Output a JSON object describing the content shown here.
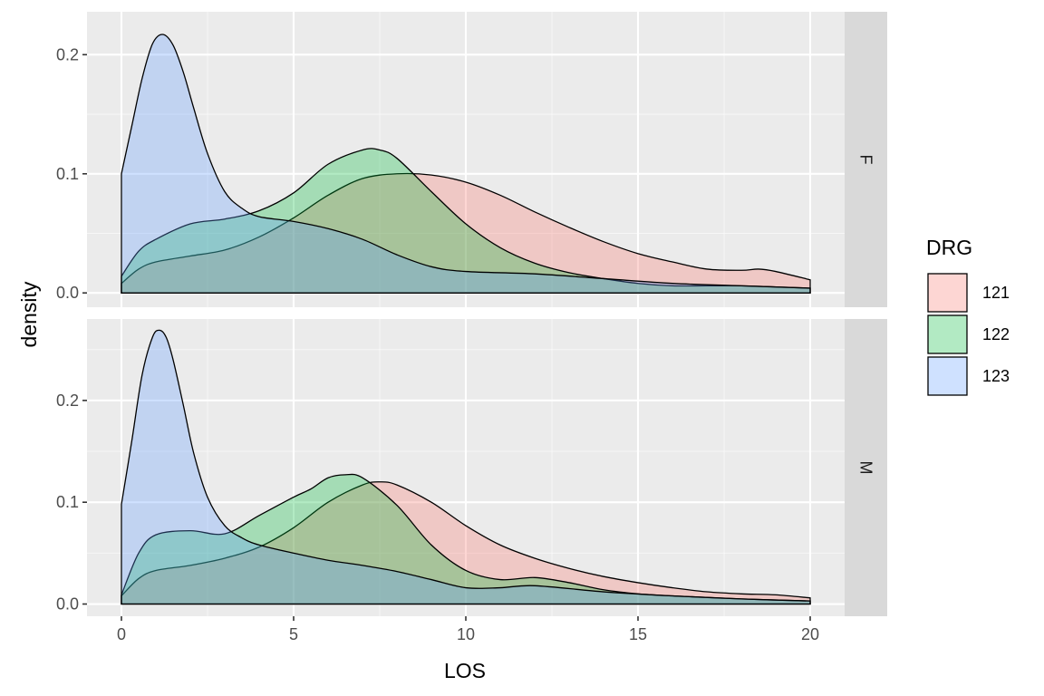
{
  "chart_data": {
    "type": "area",
    "subtype": "density",
    "xlabel": "LOS",
    "ylabel": "density",
    "xlim": [
      -1,
      21
    ],
    "x_ticks": [
      0,
      5,
      10,
      15,
      20
    ],
    "x_tick_labels": [
      "0",
      "5",
      "10",
      "15",
      "20"
    ],
    "y_ticks": [
      0.0,
      0.1,
      0.2
    ],
    "y_tick_labels": [
      "0.0",
      "0.1",
      "0.2"
    ],
    "legend": {
      "title": "DRG",
      "position": "right",
      "entries": [
        {
          "label": "121",
          "color": "#F8766D"
        },
        {
          "label": "122",
          "color": "#00BA38"
        },
        {
          "label": "123",
          "color": "#619CFF"
        }
      ]
    },
    "facets": [
      {
        "label": "F",
        "ylim": [
          -0.012,
          0.236
        ],
        "series": [
          {
            "name": "121",
            "color": "#F8766D",
            "x": [
              0,
              0.5,
              1,
              2,
              3,
              4,
              5,
              6,
              7,
              8,
              9,
              10,
              11,
              12,
              13,
              14,
              15,
              16,
              17,
              18,
              18.5,
              19,
              20
            ],
            "y": [
              0.008,
              0.02,
              0.026,
              0.031,
              0.036,
              0.047,
              0.063,
              0.082,
              0.096,
              0.1,
              0.099,
              0.093,
              0.082,
              0.068,
              0.055,
              0.043,
              0.033,
              0.026,
              0.02,
              0.019,
              0.02,
              0.018,
              0.011
            ]
          },
          {
            "name": "122",
            "color": "#00BA38",
            "x": [
              0,
              0.5,
              1,
              2,
              3,
              4,
              5,
              6,
              7,
              7.5,
              8,
              9,
              10,
              11,
              12,
              13,
              14,
              15,
              16,
              17,
              18,
              19,
              20
            ],
            "y": [
              0.014,
              0.035,
              0.045,
              0.058,
              0.062,
              0.069,
              0.084,
              0.108,
              0.12,
              0.12,
              0.113,
              0.085,
              0.058,
              0.038,
              0.025,
              0.017,
              0.012,
              0.008,
              0.006,
              0.006,
              0.006,
              0.005,
              0.004
            ]
          },
          {
            "name": "123",
            "color": "#619CFF",
            "x": [
              0,
              0.3,
              0.6,
              0.9,
              1.2,
              1.5,
              1.8,
              2.1,
              2.5,
              3,
              3.5,
              4,
              5,
              6,
              7,
              8,
              9,
              10,
              12,
              14,
              16,
              18,
              20
            ],
            "y": [
              0.1,
              0.14,
              0.18,
              0.209,
              0.217,
              0.208,
              0.185,
              0.155,
              0.117,
              0.085,
              0.071,
              0.064,
              0.06,
              0.054,
              0.045,
              0.032,
              0.022,
              0.018,
              0.016,
              0.012,
              0.008,
              0.006,
              0.004
            ]
          }
        ]
      },
      {
        "label": "M",
        "ylim": [
          -0.012,
          0.28
        ],
        "series": [
          {
            "name": "121",
            "color": "#F8766D",
            "x": [
              0,
              0.5,
              1,
              2,
              3,
              4,
              5,
              6,
              7,
              7.5,
              8,
              9,
              10,
              11,
              12,
              13,
              14,
              15,
              16,
              17,
              18,
              19,
              20
            ],
            "y": [
              0.008,
              0.025,
              0.033,
              0.038,
              0.045,
              0.056,
              0.075,
              0.1,
              0.117,
              0.12,
              0.117,
              0.1,
              0.077,
              0.058,
              0.045,
              0.035,
              0.027,
              0.021,
              0.016,
              0.012,
              0.01,
              0.009,
              0.006
            ]
          },
          {
            "name": "122",
            "color": "#00BA38",
            "x": [
              0,
              0.5,
              1,
              2,
              3,
              4,
              5,
              5.5,
              6,
              6.5,
              7,
              8,
              9,
              10,
              11,
              12,
              13,
              14,
              15,
              16,
              18,
              20
            ],
            "y": [
              0.009,
              0.05,
              0.068,
              0.072,
              0.069,
              0.087,
              0.105,
              0.113,
              0.124,
              0.127,
              0.124,
              0.097,
              0.058,
              0.033,
              0.024,
              0.026,
              0.021,
              0.014,
              0.01,
              0.008,
              0.005,
              0.003
            ]
          },
          {
            "name": "123",
            "color": "#619CFF",
            "x": [
              0,
              0.3,
              0.6,
              0.9,
              1.1,
              1.3,
              1.5,
              1.8,
              2.1,
              2.5,
              3,
              3.5,
              4,
              5,
              6,
              7,
              8,
              9,
              10,
              11,
              12,
              14,
              16,
              18,
              20
            ],
            "y": [
              0.098,
              0.16,
              0.225,
              0.262,
              0.269,
              0.262,
              0.24,
              0.195,
              0.148,
              0.105,
              0.077,
              0.065,
              0.058,
              0.05,
              0.043,
              0.038,
              0.032,
              0.024,
              0.016,
              0.016,
              0.018,
              0.012,
              0.008,
              0.005,
              0.003
            ]
          }
        ]
      }
    ]
  }
}
